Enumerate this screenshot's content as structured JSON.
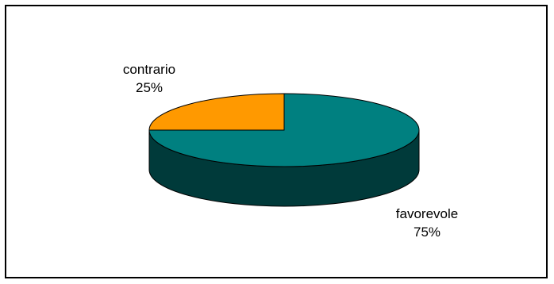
{
  "chart_data": {
    "type": "pie",
    "style": "3d",
    "slices": [
      {
        "label": "favorevole",
        "value": 75,
        "value_label": "75%",
        "color": "#008080"
      },
      {
        "label": "contrario",
        "value": 25,
        "value_label": "25%",
        "color": "#FF9900"
      }
    ],
    "title": "",
    "legend": "none",
    "border": true
  },
  "labels": {
    "favorevole_name": "favorevole",
    "favorevole_pct": "75%",
    "contrario_name": "contrario",
    "contrario_pct": "25%"
  }
}
